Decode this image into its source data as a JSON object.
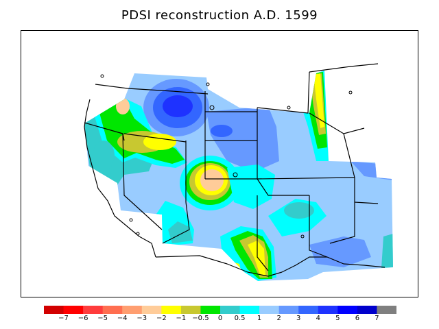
{
  "title": "PDSI reconstruction A.D. 1599",
  "legend": {
    "bins": [
      {
        "color": "#d20000"
      },
      {
        "color": "#ff0000"
      },
      {
        "color": "#ff3c3c"
      },
      {
        "color": "#ff6e50"
      },
      {
        "color": "#ff9e70"
      },
      {
        "color": "#ffcc99"
      },
      {
        "color": "#ffff00"
      },
      {
        "color": "#c8c830"
      },
      {
        "color": "#00e600"
      },
      {
        "color": "#33cccc"
      },
      {
        "color": "#00ffff"
      },
      {
        "color": "#99ccff"
      },
      {
        "color": "#6699ff"
      },
      {
        "color": "#3366ff"
      },
      {
        "color": "#1e32ff"
      },
      {
        "color": "#0000ff"
      },
      {
        "color": "#0000cc"
      },
      {
        "color": "#7f7f7f"
      }
    ],
    "tick_labels": [
      "−7",
      "−6",
      "−5",
      "−4",
      "−3",
      "−2",
      "−1",
      "−0.5",
      "0",
      "0.5",
      "1",
      "2",
      "3",
      "4",
      "5",
      "6",
      "7"
    ]
  }
}
